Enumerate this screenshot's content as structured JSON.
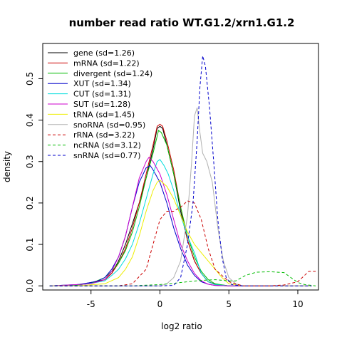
{
  "chart_data": {
    "type": "line",
    "title": "number read ratio WT.G1.2/xrn1.G1.2",
    "xlabel": "log2 ratio",
    "ylabel": "density",
    "xlim": [
      -8.5,
      11.5
    ],
    "ylim": [
      -0.01,
      0.585
    ],
    "xticks": [
      -5,
      0,
      5,
      10
    ],
    "yticks": [
      0.0,
      0.1,
      0.2,
      0.3,
      0.4,
      0.5
    ],
    "ytick_labels": [
      "0.0",
      "0.1",
      "0.2",
      "0.3",
      "0.4",
      "0.5"
    ],
    "grid": false,
    "legend_position": "top-left",
    "series": [
      {
        "name": "gene (sd=1.26)",
        "color": "#000000",
        "dash": "solid",
        "points": [
          [
            -8,
            0
          ],
          [
            -6,
            0.002
          ],
          [
            -5,
            0.008
          ],
          [
            -4,
            0.015
          ],
          [
            -3.5,
            0.03
          ],
          [
            -3,
            0.06
          ],
          [
            -2.5,
            0.1
          ],
          [
            -2,
            0.15
          ],
          [
            -1.5,
            0.2
          ],
          [
            -1,
            0.26
          ],
          [
            -0.5,
            0.33
          ],
          [
            -0.2,
            0.38
          ],
          [
            0,
            0.385
          ],
          [
            0.2,
            0.38
          ],
          [
            0.5,
            0.34
          ],
          [
            1,
            0.27
          ],
          [
            1.5,
            0.18
          ],
          [
            2,
            0.11
          ],
          [
            2.5,
            0.06
          ],
          [
            3,
            0.03
          ],
          [
            3.5,
            0.01
          ],
          [
            4,
            0.004
          ],
          [
            5,
            0
          ],
          [
            11,
            0
          ]
        ]
      },
      {
        "name": "mRNA (sd=1.22)",
        "color": "#cc0000",
        "dash": "solid",
        "points": [
          [
            -8,
            0
          ],
          [
            -6,
            0.002
          ],
          [
            -5,
            0.006
          ],
          [
            -4,
            0.015
          ],
          [
            -3.5,
            0.03
          ],
          [
            -3,
            0.055
          ],
          [
            -2.5,
            0.09
          ],
          [
            -2,
            0.14
          ],
          [
            -1.5,
            0.2
          ],
          [
            -1,
            0.27
          ],
          [
            -0.5,
            0.34
          ],
          [
            -0.2,
            0.385
          ],
          [
            0,
            0.39
          ],
          [
            0.2,
            0.385
          ],
          [
            0.5,
            0.35
          ],
          [
            1,
            0.28
          ],
          [
            1.5,
            0.19
          ],
          [
            2,
            0.11
          ],
          [
            2.5,
            0.06
          ],
          [
            3,
            0.03
          ],
          [
            3.5,
            0.01
          ],
          [
            4,
            0.003
          ],
          [
            5,
            0
          ],
          [
            11,
            0
          ]
        ]
      },
      {
        "name": "divergent (sd=1.24)",
        "color": "#00bb00",
        "dash": "solid",
        "points": [
          [
            -8,
            0
          ],
          [
            -6,
            0.002
          ],
          [
            -5,
            0.006
          ],
          [
            -4,
            0.02
          ],
          [
            -3.5,
            0.035
          ],
          [
            -3,
            0.055
          ],
          [
            -2.5,
            0.085
          ],
          [
            -2,
            0.13
          ],
          [
            -1.5,
            0.19
          ],
          [
            -1,
            0.26
          ],
          [
            -0.5,
            0.32
          ],
          [
            -0.1,
            0.375
          ],
          [
            0.1,
            0.37
          ],
          [
            0.5,
            0.34
          ],
          [
            1,
            0.27
          ],
          [
            1.5,
            0.19
          ],
          [
            2,
            0.12
          ],
          [
            2.5,
            0.07
          ],
          [
            3,
            0.035
          ],
          [
            3.5,
            0.015
          ],
          [
            4,
            0.005
          ],
          [
            5,
            0
          ],
          [
            11,
            0
          ]
        ]
      },
      {
        "name": "XUT (sd=1.34)",
        "color": "#0000cc",
        "dash": "solid",
        "points": [
          [
            -8,
            0
          ],
          [
            -6,
            0.003
          ],
          [
            -5,
            0.008
          ],
          [
            -4.5,
            0.012
          ],
          [
            -4,
            0.02
          ],
          [
            -3.5,
            0.04
          ],
          [
            -3,
            0.07
          ],
          [
            -2.5,
            0.12
          ],
          [
            -2,
            0.19
          ],
          [
            -1.5,
            0.25
          ],
          [
            -1,
            0.285
          ],
          [
            -0.7,
            0.29
          ],
          [
            -0.5,
            0.28
          ],
          [
            0,
            0.25
          ],
          [
            0.5,
            0.2
          ],
          [
            1,
            0.14
          ],
          [
            1.5,
            0.09
          ],
          [
            2,
            0.05
          ],
          [
            2.5,
            0.025
          ],
          [
            3,
            0.01
          ],
          [
            3.5,
            0.004
          ],
          [
            4,
            0.001
          ],
          [
            5,
            0
          ],
          [
            11,
            0
          ]
        ]
      },
      {
        "name": "CUT (sd=1.31)",
        "color": "#00dddd",
        "dash": "solid",
        "points": [
          [
            -8,
            0
          ],
          [
            -6,
            0.003
          ],
          [
            -5,
            0.006
          ],
          [
            -4,
            0.012
          ],
          [
            -3.5,
            0.025
          ],
          [
            -3,
            0.04
          ],
          [
            -2.5,
            0.065
          ],
          [
            -2,
            0.1
          ],
          [
            -1.5,
            0.15
          ],
          [
            -1,
            0.21
          ],
          [
            -0.5,
            0.27
          ],
          [
            -0.2,
            0.3
          ],
          [
            0,
            0.305
          ],
          [
            0.3,
            0.29
          ],
          [
            0.6,
            0.27
          ],
          [
            1,
            0.23
          ],
          [
            1.5,
            0.17
          ],
          [
            2,
            0.12
          ],
          [
            2.5,
            0.08
          ],
          [
            3,
            0.03
          ],
          [
            3.5,
            0.01
          ],
          [
            4,
            0.003
          ],
          [
            5,
            0
          ],
          [
            11,
            0
          ]
        ]
      },
      {
        "name": "SUT (sd=1.28)",
        "color": "#cc00cc",
        "dash": "solid",
        "points": [
          [
            -8,
            0
          ],
          [
            -6,
            0.003
          ],
          [
            -5,
            0.005
          ],
          [
            -4,
            0.015
          ],
          [
            -3.5,
            0.035
          ],
          [
            -3,
            0.07
          ],
          [
            -2.5,
            0.12
          ],
          [
            -2,
            0.19
          ],
          [
            -1.5,
            0.26
          ],
          [
            -1,
            0.3
          ],
          [
            -0.8,
            0.31
          ],
          [
            -0.5,
            0.3
          ],
          [
            0,
            0.27
          ],
          [
            0.5,
            0.22
          ],
          [
            1,
            0.16
          ],
          [
            1.5,
            0.1
          ],
          [
            2,
            0.06
          ],
          [
            2.5,
            0.03
          ],
          [
            3,
            0.012
          ],
          [
            3.5,
            0.004
          ],
          [
            4,
            0.001
          ],
          [
            5,
            0
          ],
          [
            11,
            0
          ]
        ]
      },
      {
        "name": "tRNA (sd=1.45)",
        "color": "#eeee00",
        "dash": "solid",
        "points": [
          [
            -8,
            0
          ],
          [
            -6,
            0
          ],
          [
            -4,
            0.005
          ],
          [
            -3,
            0.02
          ],
          [
            -2.5,
            0.04
          ],
          [
            -2,
            0.07
          ],
          [
            -1.5,
            0.12
          ],
          [
            -1,
            0.18
          ],
          [
            -0.5,
            0.23
          ],
          [
            -0.2,
            0.25
          ],
          [
            0,
            0.255
          ],
          [
            0.5,
            0.24
          ],
          [
            1,
            0.21
          ],
          [
            1.5,
            0.17
          ],
          [
            2,
            0.13
          ],
          [
            2.5,
            0.1
          ],
          [
            3,
            0.08
          ],
          [
            3.5,
            0.06
          ],
          [
            4,
            0.04
          ],
          [
            4.5,
            0.02
          ],
          [
            5,
            0.005
          ],
          [
            6,
            0
          ],
          [
            11,
            0
          ]
        ]
      },
      {
        "name": "snoRNA (sd=0.95)",
        "color": "#b0b0b0",
        "dash": "solid",
        "points": [
          [
            -8,
            0
          ],
          [
            -2,
            0
          ],
          [
            0,
            0
          ],
          [
            0.5,
            0.005
          ],
          [
            1,
            0.02
          ],
          [
            1.5,
            0.06
          ],
          [
            2,
            0.17
          ],
          [
            2.3,
            0.3
          ],
          [
            2.5,
            0.41
          ],
          [
            2.7,
            0.43
          ],
          [
            2.9,
            0.37
          ],
          [
            3.1,
            0.32
          ],
          [
            3.4,
            0.3
          ],
          [
            3.8,
            0.25
          ],
          [
            4.2,
            0.14
          ],
          [
            4.6,
            0.06
          ],
          [
            5,
            0.02
          ],
          [
            5.5,
            0.005
          ],
          [
            6,
            0
          ],
          [
            11,
            0
          ]
        ]
      },
      {
        "name": "rRNA (sd=3.22)",
        "color": "#cc0000",
        "dash": "dashed",
        "points": [
          [
            -8,
            0
          ],
          [
            -3,
            0
          ],
          [
            -2,
            0.005
          ],
          [
            -1,
            0.04
          ],
          [
            -0.5,
            0.1
          ],
          [
            0,
            0.16
          ],
          [
            0.5,
            0.18
          ],
          [
            1,
            0.18
          ],
          [
            1.5,
            0.19
          ],
          [
            2,
            0.205
          ],
          [
            2.5,
            0.2
          ],
          [
            3,
            0.16
          ],
          [
            3.5,
            0.09
          ],
          [
            4,
            0.04
          ],
          [
            5,
            0.01
          ],
          [
            6,
            0
          ],
          [
            8,
            0
          ],
          [
            9,
            0.002
          ],
          [
            10,
            0.01
          ],
          [
            10.8,
            0.035
          ],
          [
            11.3,
            0.035
          ]
        ]
      },
      {
        "name": "ncRNA (sd=3.12)",
        "color": "#00bb00",
        "dash": "dashed",
        "points": [
          [
            -8,
            0
          ],
          [
            -2,
            0
          ],
          [
            0,
            0.003
          ],
          [
            1,
            0.006
          ],
          [
            2,
            0.01
          ],
          [
            3,
            0.013
          ],
          [
            4,
            0.015
          ],
          [
            5,
            0.012
          ],
          [
            5.5,
            0.012
          ],
          [
            6.2,
            0.025
          ],
          [
            7,
            0.033
          ],
          [
            8,
            0.034
          ],
          [
            9,
            0.032
          ],
          [
            9.5,
            0.02
          ],
          [
            10,
            0.008
          ],
          [
            10.5,
            0.003
          ],
          [
            11,
            0.001
          ],
          [
            11.3,
            0
          ]
        ]
      },
      {
        "name": "snRNA (sd=0.77)",
        "color": "#0000cc",
        "dash": "dashed",
        "points": [
          [
            -8,
            0
          ],
          [
            0,
            0
          ],
          [
            1,
            0.001
          ],
          [
            1.5,
            0.02
          ],
          [
            2,
            0.1
          ],
          [
            2.4,
            0.2
          ],
          [
            2.7,
            0.35
          ],
          [
            2.9,
            0.48
          ],
          [
            3.1,
            0.555
          ],
          [
            3.3,
            0.53
          ],
          [
            3.6,
            0.43
          ],
          [
            3.9,
            0.3
          ],
          [
            4.2,
            0.16
          ],
          [
            4.5,
            0.07
          ],
          [
            4.8,
            0.02
          ],
          [
            5.2,
            0.003
          ],
          [
            6,
            0
          ],
          [
            11,
            0
          ]
        ]
      }
    ]
  }
}
